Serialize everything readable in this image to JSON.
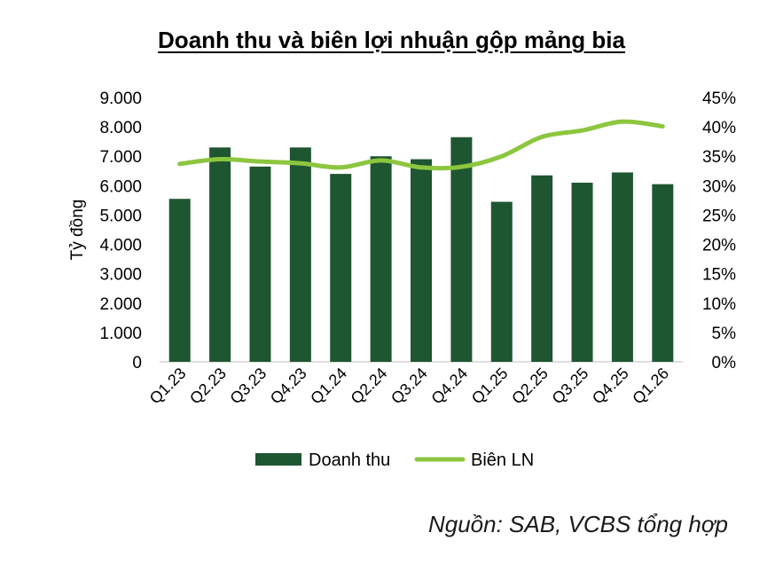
{
  "chart_data": {
    "type": "bar",
    "title": "Doanh thu và biên lợi nhuận gộp mảng bia",
    "ylabel": "Tỷ đồng",
    "y2label": "",
    "categories": [
      "Q1.23",
      "Q2.23",
      "Q3.23",
      "Q4.23",
      "Q1.24",
      "Q2.24",
      "Q3.24",
      "Q4.24",
      "Q1.25",
      "Q2.25",
      "Q3.25",
      "Q4.25",
      "Q1.26"
    ],
    "ylim": [
      0,
      9000
    ],
    "y_ticks": [
      "0",
      "1.000",
      "2.000",
      "3.000",
      "4.000",
      "5.000",
      "6.000",
      "7.000",
      "8.000",
      "9.000"
    ],
    "y2lim": [
      0,
      45
    ],
    "y2_ticks": [
      "0%",
      "5%",
      "10%",
      "15%",
      "20%",
      "25%",
      "30%",
      "35%",
      "40%",
      "45%"
    ],
    "series": [
      {
        "name": "Doanh thu",
        "type": "bar",
        "axis": "left",
        "color": "#1e5631",
        "values": [
          5550,
          7300,
          6650,
          7300,
          6400,
          7000,
          6900,
          7650,
          5450,
          6350,
          6100,
          6450,
          6050
        ]
      },
      {
        "name": "Biên LN",
        "type": "line",
        "axis": "right",
        "color": "#8cc63f",
        "values": [
          33.7,
          34.5,
          34.1,
          33.8,
          33.1,
          34.3,
          33.1,
          33.2,
          35.0,
          38.3,
          39.4,
          40.9,
          40.1
        ]
      }
    ],
    "legend": "bottom",
    "grid": false
  },
  "source_text": "Nguồn: SAB, VCBS tổng hợp"
}
